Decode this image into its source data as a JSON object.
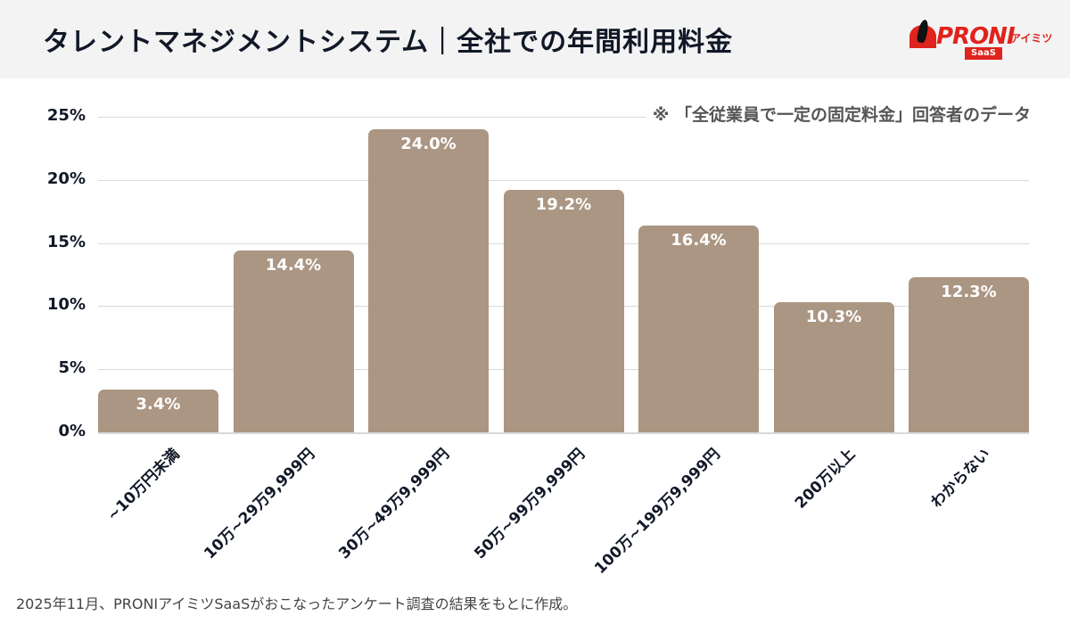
{
  "header": {
    "title": "タレントマネジメントシステム｜全社での年間利用料金",
    "logo": {
      "brand": "PRONI",
      "sub": "アイミツ",
      "badge": "SaaS"
    }
  },
  "note": "※ 「全従業員で一定の固定料金」回答者のデータ",
  "footer": "2025年11月、PRONIアイミツSaaSがおこなったアンケート調査の結果をもとに作成。",
  "colors": {
    "bar": "#ab9683",
    "header_bg": "#f3f3f3",
    "brand_red": "#e0231d",
    "grid": "#d9d9d9"
  },
  "y_ticks": [
    "0%",
    "5%",
    "10%",
    "15%",
    "20%",
    "25%"
  ],
  "bars": [
    {
      "category": "~10万円未満",
      "value": 3.4,
      "label": "3.4%"
    },
    {
      "category": "10万~29万9,999円",
      "value": 14.4,
      "label": "14.4%"
    },
    {
      "category": "30万~49万9,999円",
      "value": 24.0,
      "label": "24.0%"
    },
    {
      "category": "50万~99万9,999円",
      "value": 19.2,
      "label": "19.2%"
    },
    {
      "category": "100万~199万9,999円",
      "value": 16.4,
      "label": "16.4%"
    },
    {
      "category": "200万以上",
      "value": 10.3,
      "label": "10.3%"
    },
    {
      "category": "わからない",
      "value": 12.3,
      "label": "12.3%"
    }
  ],
  "chart_data": {
    "type": "bar",
    "title": "タレントマネジメントシステム｜全社での年間利用料金",
    "subtitle": "※ 「全従業員で一定の固定料金」回答者のデータ",
    "categories": [
      "~10万円未満",
      "10万~29万9,999円",
      "30万~49万9,999円",
      "50万~99万9,999円",
      "100万~199万9,999円",
      "200万以上",
      "わからない"
    ],
    "values": [
      3.4,
      14.4,
      24.0,
      19.2,
      16.4,
      10.3,
      12.3
    ],
    "data_labels": [
      "3.4%",
      "14.4%",
      "24.0%",
      "19.2%",
      "16.4%",
      "10.3%",
      "12.3%"
    ],
    "xlabel": "",
    "ylabel": "",
    "ylim": [
      0,
      25
    ],
    "yticks": [
      "0%",
      "5%",
      "10%",
      "15%",
      "20%",
      "25%"
    ],
    "grid": true,
    "legend": "none",
    "source_note": "2025年11月、PRONIアイミツSaaSがおこなったアンケート調査の結果をもとに作成。"
  }
}
